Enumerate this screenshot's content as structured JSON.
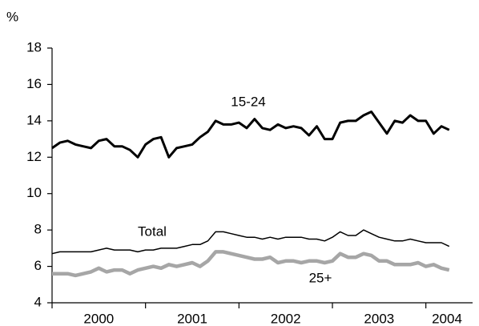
{
  "chart_data": {
    "type": "line",
    "y_label": "%",
    "x": [
      2000,
      2000.083,
      2000.167,
      2000.25,
      2000.333,
      2000.417,
      2000.5,
      2000.583,
      2000.667,
      2000.75,
      2000.833,
      2000.917,
      2001,
      2001.083,
      2001.167,
      2001.25,
      2001.333,
      2001.417,
      2001.5,
      2001.583,
      2001.667,
      2001.75,
      2001.833,
      2001.917,
      2002,
      2002.083,
      2002.167,
      2002.25,
      2002.333,
      2002.417,
      2002.5,
      2002.583,
      2002.667,
      2002.75,
      2002.833,
      2002.917,
      2003,
      2003.083,
      2003.167,
      2003.25,
      2003.333,
      2003.417,
      2003.5,
      2003.583,
      2003.667,
      2003.75,
      2003.833,
      2003.917,
      2004,
      2004.083,
      2004.167,
      2004.25
    ],
    "series": [
      {
        "name": "15-24",
        "color": "#000000",
        "width": 3,
        "values": [
          12.5,
          12.8,
          12.9,
          12.7,
          12.6,
          12.5,
          12.9,
          13.0,
          12.6,
          12.6,
          12.4,
          12.0,
          12.7,
          13.0,
          13.1,
          12.0,
          12.5,
          12.6,
          12.7,
          13.1,
          13.4,
          14.0,
          13.8,
          13.8,
          13.9,
          13.6,
          14.1,
          13.6,
          13.5,
          13.8,
          13.6,
          13.7,
          13.6,
          13.2,
          13.7,
          13.0,
          13.0,
          13.9,
          14.0,
          14.0,
          14.3,
          14.5,
          13.9,
          13.3,
          14.0,
          13.9,
          14.3,
          14.0,
          14.0,
          13.3,
          13.7,
          13.5
        ]
      },
      {
        "name": "Total",
        "color": "#000000",
        "width": 1.5,
        "values": [
          6.7,
          6.8,
          6.8,
          6.8,
          6.8,
          6.8,
          6.9,
          7.0,
          6.9,
          6.9,
          6.9,
          6.8,
          6.9,
          6.9,
          7.0,
          7.0,
          7.0,
          7.1,
          7.2,
          7.2,
          7.4,
          7.9,
          7.9,
          7.8,
          7.7,
          7.6,
          7.6,
          7.5,
          7.6,
          7.5,
          7.6,
          7.6,
          7.6,
          7.5,
          7.5,
          7.4,
          7.6,
          7.9,
          7.7,
          7.7,
          8.0,
          7.8,
          7.6,
          7.5,
          7.4,
          7.4,
          7.5,
          7.4,
          7.3,
          7.3,
          7.3,
          7.1
        ]
      },
      {
        "name": "25+",
        "color": "#a6a6a6",
        "width": 4.5,
        "values": [
          5.6,
          5.6,
          5.6,
          5.5,
          5.6,
          5.7,
          5.9,
          5.7,
          5.8,
          5.8,
          5.6,
          5.8,
          5.9,
          6.0,
          5.9,
          6.1,
          6.0,
          6.1,
          6.2,
          6.0,
          6.3,
          6.8,
          6.8,
          6.7,
          6.6,
          6.5,
          6.4,
          6.4,
          6.5,
          6.2,
          6.3,
          6.3,
          6.2,
          6.3,
          6.3,
          6.2,
          6.3,
          6.7,
          6.5,
          6.5,
          6.7,
          6.6,
          6.3,
          6.3,
          6.1,
          6.1,
          6.1,
          6.2,
          6.0,
          6.1,
          5.9,
          5.8
        ]
      }
    ],
    "xlim": [
      2000,
      2004.5
    ],
    "xticks": [
      {
        "value": 2000.5,
        "label": "2000"
      },
      {
        "value": 2001.5,
        "label": "2001"
      },
      {
        "value": 2002.5,
        "label": "2002"
      },
      {
        "value": 2003.5,
        "label": "2003"
      },
      {
        "value": 2004.5,
        "label": "2004"
      }
    ],
    "x_boundaries": [
      2000,
      2001,
      2002,
      2003,
      2004
    ],
    "ylim": [
      4,
      18
    ],
    "yticks": [
      4,
      6,
      8,
      10,
      12,
      14,
      16,
      18
    ],
    "grid": false
  }
}
